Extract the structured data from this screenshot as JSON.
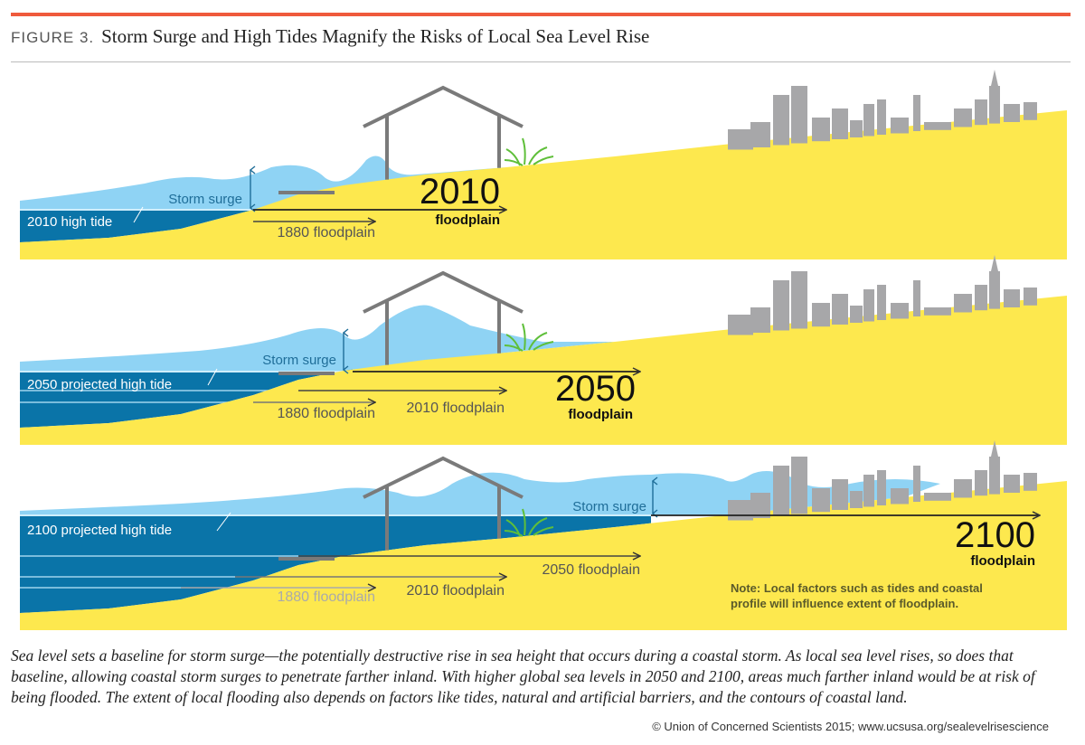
{
  "figure": {
    "label": "FIGURE 3.",
    "title": "Storm Surge and High Tides Magnify the Risks of Local Sea Level Rise"
  },
  "colors": {
    "accent": "#ef5a3c",
    "land": "#fde84e",
    "deep_water": "#0a74a8",
    "surge_water": "#8fd3f4",
    "structures": "#7a7a7a",
    "grass": "#5fbf3a"
  },
  "panels": [
    {
      "high_tide": "2010 high tide",
      "storm_surge": "Storm surge",
      "floodplains": [
        "1880 floodplain"
      ],
      "big_year": "2010",
      "big_label": "floodplain"
    },
    {
      "high_tide": "2050 projected high tide",
      "storm_surge": "Storm surge",
      "floodplains": [
        "1880 floodplain",
        "2010 floodplain"
      ],
      "big_year": "2050",
      "big_label": "floodplain"
    },
    {
      "high_tide": "2100 projected high tide",
      "storm_surge": "Storm surge",
      "floodplains": [
        "1880 floodplain",
        "2010 floodplain",
        "2050 floodplain"
      ],
      "big_year": "2100",
      "big_label": "floodplain",
      "note": [
        "Note: Local factors such as tides and coastal",
        "profile will influence extent of floodplain."
      ]
    }
  ],
  "caption": "Sea level sets a baseline for storm surge—the potentially destructive rise in sea height that occurs during a coastal storm. As local sea level rises, so does that baseline, allowing coastal storm surges to penetrate farther inland. With higher global sea levels in 2050 and 2100, areas much farther inland would be at risk of being flooded. The extent of local flooding also depends on factors like tides, natural and artificial barriers, and the contours of coastal land.",
  "credit": "© Union of Concerned Scientists 2015; www.ucsusa.org/sealevelrisescience"
}
